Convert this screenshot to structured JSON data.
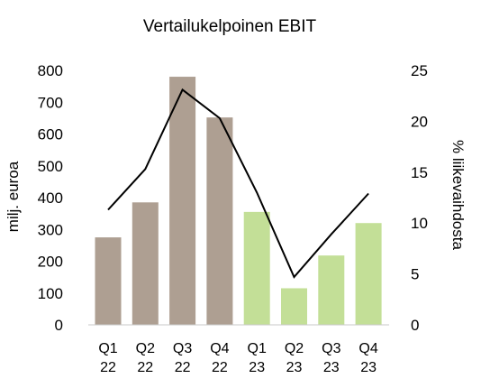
{
  "chart_data": {
    "type": "bar+line",
    "title": "Vertailukelpoinen EBIT",
    "ylabel_left": "milj. euroa",
    "ylabel_right": "% liikevaihdosta",
    "categories": [
      {
        "line1": "Q1",
        "line2": "22"
      },
      {
        "line1": "Q2",
        "line2": "22"
      },
      {
        "line1": "Q3",
        "line2": "22"
      },
      {
        "line1": "Q4",
        "line2": "22"
      },
      {
        "line1": "Q1",
        "line2": "23"
      },
      {
        "line1": "Q2",
        "line2": "23"
      },
      {
        "line1": "Q3",
        "line2": "23"
      },
      {
        "line1": "Q4",
        "line2": "23"
      }
    ],
    "bars": [
      275,
      385,
      780,
      652,
      355,
      115,
      218,
      320
    ],
    "bar_colors": [
      "#ae9f92",
      "#ae9f92",
      "#ae9f92",
      "#ae9f92",
      "#c3df97",
      "#c3df97",
      "#c3df97",
      "#c3df97"
    ],
    "line": [
      11.3,
      15.3,
      23.1,
      20.3,
      13.0,
      4.7,
      8.9,
      12.9
    ],
    "line_color": "#000000",
    "ylim_left": [
      0,
      800
    ],
    "yticks_left": [
      0,
      100,
      200,
      300,
      400,
      500,
      600,
      700,
      800
    ],
    "ylim_right": [
      0,
      25
    ],
    "yticks_right": [
      0,
      5,
      10,
      15,
      20,
      25
    ],
    "grid": false,
    "legend": "none"
  }
}
